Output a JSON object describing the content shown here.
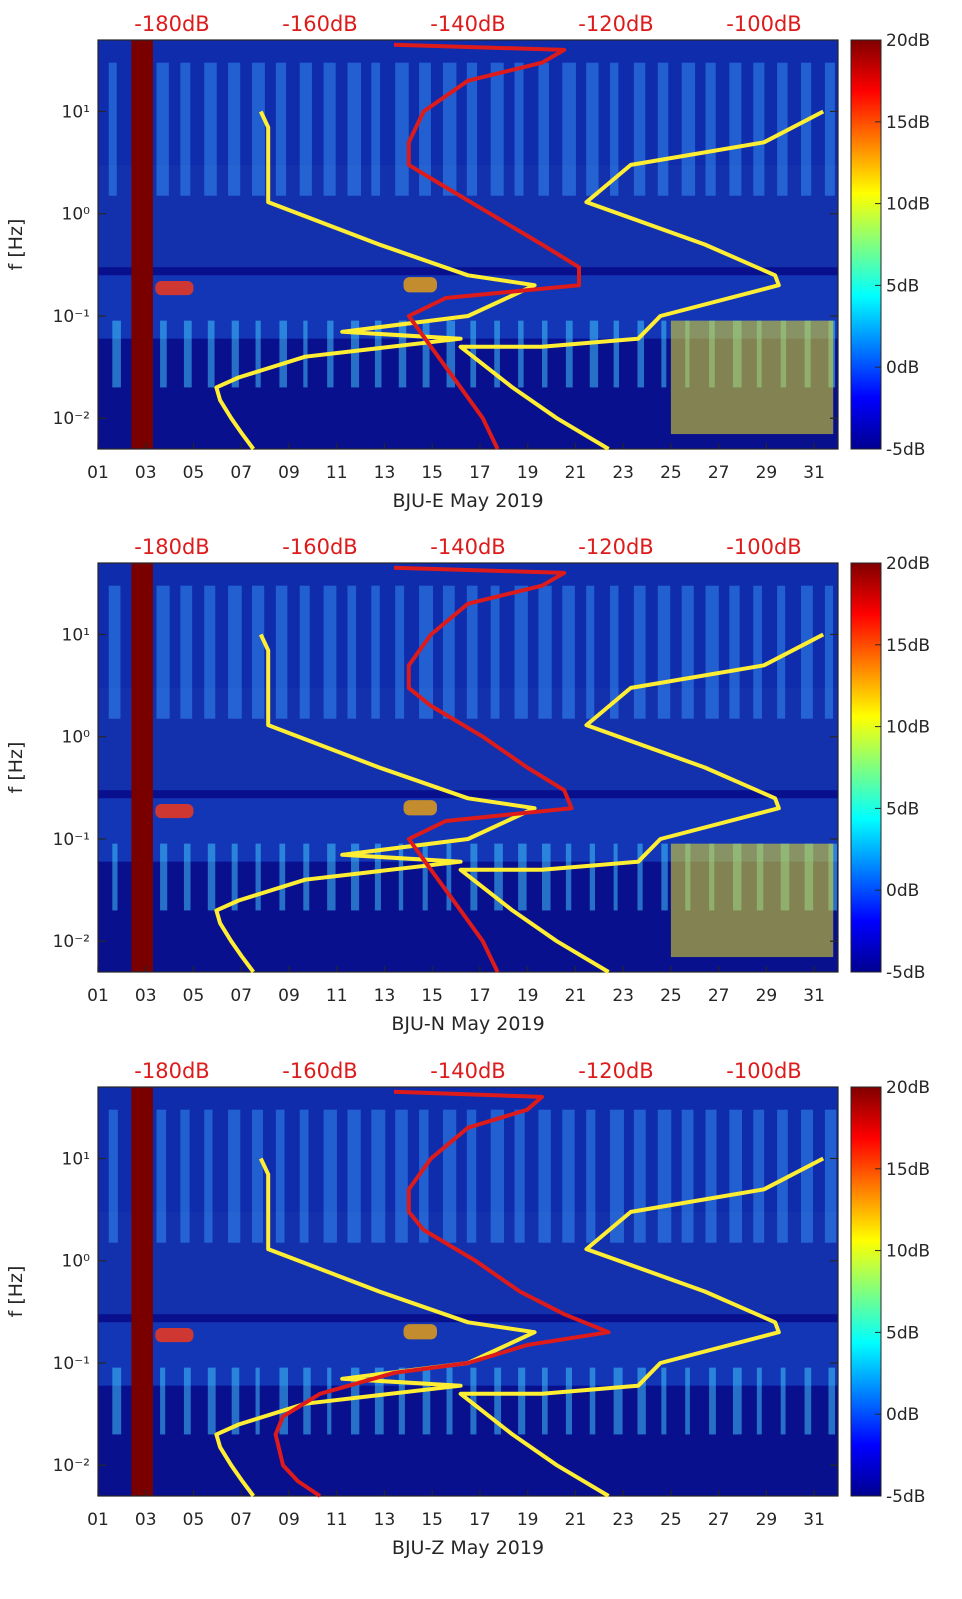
{
  "colors": {
    "noise_model_high_low": "#ffee33",
    "station_noise_median": "#dd1b1b",
    "db_scale_text": "#dd1b1b",
    "background_band": "#08108e",
    "gap_band": "#7a0000",
    "axis": "#262626"
  },
  "chart_data": [
    {
      "type": "heatmap",
      "id": "E",
      "xlabel": "BJU-E May 2019",
      "ylabel": "f [Hz]",
      "x_axis": {
        "unit": "day of May 2019",
        "range": [
          1,
          32
        ],
        "tick_values": [
          1,
          3,
          5,
          7,
          9,
          11,
          13,
          15,
          17,
          19,
          21,
          23,
          25,
          27,
          29,
          31
        ],
        "tick_labels": [
          "01",
          "03",
          "05",
          "07",
          "09",
          "11",
          "13",
          "15",
          "17",
          "19",
          "21",
          "23",
          "25",
          "27",
          "29",
          "31"
        ]
      },
      "y_axis": {
        "scale": "log",
        "unit": "Hz",
        "range": [
          0.005,
          50
        ],
        "tick_values": [
          0.01,
          0.1,
          1,
          10
        ],
        "tick_labels": [
          "10⁻²",
          "10⁻¹",
          "10⁰",
          "10¹"
        ]
      },
      "top_axis": {
        "unit": "dB",
        "range": [
          -190,
          -90
        ],
        "tick_values": [
          -180,
          -160,
          -140,
          -120,
          -100
        ],
        "tick_labels": [
          "-180dB",
          "-160dB",
          "-140dB",
          "-120dB",
          "-100dB"
        ]
      },
      "colorbar": {
        "colormap": "jet",
        "range": [
          -5,
          20
        ],
        "tick_values": [
          -5,
          0,
          5,
          10,
          15,
          20
        ],
        "tick_labels": [
          "-5dB",
          "0dB",
          "5dB",
          "10dB",
          "15dB",
          "20dB"
        ]
      },
      "data_gap": {
        "day_start": 2.4,
        "day_end": 3.3
      },
      "nlnm_nhnm": [
        {
          "name": "low noise model",
          "points": [
            [
              0.005,
              -169
            ],
            [
              0.007,
              -170.5
            ],
            [
              0.01,
              -172
            ],
            [
              0.015,
              -173.5
            ],
            [
              0.02,
              -174
            ],
            [
              0.025,
              -171
            ],
            [
              0.04,
              -162
            ],
            [
              0.06,
              -141
            ],
            [
              0.07,
              -157
            ],
            [
              0.1,
              -140
            ],
            [
              0.2,
              -131
            ],
            [
              0.25,
              -140
            ],
            [
              0.5,
              -152
            ],
            [
              1.3,
              -167
            ],
            [
              4,
              -167
            ],
            [
              7,
              -167
            ],
            [
              10,
              -168
            ]
          ]
        },
        {
          "name": "high noise model",
          "points": [
            [
              0.005,
              -121
            ],
            [
              0.01,
              -128
            ],
            [
              0.02,
              -134
            ],
            [
              0.05,
              -141
            ],
            [
              0.05,
              -130
            ],
            [
              0.06,
              -117
            ],
            [
              0.1,
              -114
            ],
            [
              0.2,
              -98
            ],
            [
              0.25,
              -98.5
            ],
            [
              0.5,
              -108
            ],
            [
              1.3,
              -124
            ],
            [
              3,
              -118
            ],
            [
              5,
              -100
            ],
            [
              10,
              -92
            ]
          ]
        }
      ],
      "median_psd": {
        "name": "station median PSD",
        "points": [
          [
            0.005,
            -136
          ],
          [
            0.01,
            -138
          ],
          [
            0.02,
            -141
          ],
          [
            0.05,
            -145
          ],
          [
            0.1,
            -148
          ],
          [
            0.15,
            -143
          ],
          [
            0.2,
            -125
          ],
          [
            0.3,
            -125
          ],
          [
            0.5,
            -130
          ],
          [
            1,
            -137
          ],
          [
            2,
            -144
          ],
          [
            3,
            -148
          ],
          [
            5,
            -148
          ],
          [
            10,
            -146
          ],
          [
            20,
            -140
          ],
          [
            30,
            -130
          ],
          [
            40,
            -127
          ],
          [
            45,
            -150
          ]
        ]
      }
    },
    {
      "type": "heatmap",
      "id": "N",
      "xlabel": "BJU-N May 2019",
      "ylabel": "f [Hz]",
      "x_axis": {
        "unit": "day of May 2019",
        "range": [
          1,
          32
        ],
        "tick_values": [
          1,
          3,
          5,
          7,
          9,
          11,
          13,
          15,
          17,
          19,
          21,
          23,
          25,
          27,
          29,
          31
        ],
        "tick_labels": [
          "01",
          "03",
          "05",
          "07",
          "09",
          "11",
          "13",
          "15",
          "17",
          "19",
          "21",
          "23",
          "25",
          "27",
          "29",
          "31"
        ]
      },
      "y_axis": {
        "scale": "log",
        "unit": "Hz",
        "range": [
          0.005,
          50
        ],
        "tick_values": [
          0.01,
          0.1,
          1,
          10
        ],
        "tick_labels": [
          "10⁻²",
          "10⁻¹",
          "10⁰",
          "10¹"
        ]
      },
      "top_axis": {
        "unit": "dB",
        "range": [
          -190,
          -90
        ],
        "tick_values": [
          -180,
          -160,
          -140,
          -120,
          -100
        ],
        "tick_labels": [
          "-180dB",
          "-160dB",
          "-140dB",
          "-120dB",
          "-100dB"
        ]
      },
      "colorbar": {
        "colormap": "jet",
        "range": [
          -5,
          20
        ],
        "tick_values": [
          -5,
          0,
          5,
          10,
          15,
          20
        ],
        "tick_labels": [
          "-5dB",
          "0dB",
          "5dB",
          "10dB",
          "15dB",
          "20dB"
        ]
      },
      "data_gap": {
        "day_start": 2.4,
        "day_end": 3.3
      },
      "nlnm_nhnm": [
        {
          "name": "low noise model",
          "points": [
            [
              0.005,
              -169
            ],
            [
              0.007,
              -170.5
            ],
            [
              0.01,
              -172
            ],
            [
              0.015,
              -173.5
            ],
            [
              0.02,
              -174
            ],
            [
              0.025,
              -171
            ],
            [
              0.04,
              -162
            ],
            [
              0.06,
              -141
            ],
            [
              0.07,
              -157
            ],
            [
              0.1,
              -140
            ],
            [
              0.2,
              -131
            ],
            [
              0.25,
              -140
            ],
            [
              0.5,
              -152
            ],
            [
              1.3,
              -167
            ],
            [
              4,
              -167
            ],
            [
              7,
              -167
            ],
            [
              10,
              -168
            ]
          ]
        },
        {
          "name": "high noise model",
          "points": [
            [
              0.005,
              -121
            ],
            [
              0.01,
              -128
            ],
            [
              0.02,
              -134
            ],
            [
              0.05,
              -141
            ],
            [
              0.05,
              -130
            ],
            [
              0.06,
              -117
            ],
            [
              0.1,
              -114
            ],
            [
              0.2,
              -98
            ],
            [
              0.25,
              -98.5
            ],
            [
              0.5,
              -108
            ],
            [
              1.3,
              -124
            ],
            [
              3,
              -118
            ],
            [
              5,
              -100
            ],
            [
              10,
              -92
            ]
          ]
        }
      ],
      "median_psd": {
        "name": "station median PSD",
        "points": [
          [
            0.005,
            -136
          ],
          [
            0.01,
            -138
          ],
          [
            0.02,
            -141
          ],
          [
            0.05,
            -145
          ],
          [
            0.1,
            -148
          ],
          [
            0.15,
            -143
          ],
          [
            0.2,
            -126
          ],
          [
            0.3,
            -127
          ],
          [
            0.5,
            -132
          ],
          [
            1,
            -138
          ],
          [
            2,
            -145
          ],
          [
            3,
            -148
          ],
          [
            5,
            -148
          ],
          [
            10,
            -145
          ],
          [
            20,
            -140
          ],
          [
            30,
            -130
          ],
          [
            40,
            -127
          ],
          [
            45,
            -150
          ]
        ]
      }
    },
    {
      "type": "heatmap",
      "id": "Z",
      "xlabel": "BJU-Z May 2019",
      "ylabel": "f [Hz]",
      "x_axis": {
        "unit": "day of May 2019",
        "range": [
          1,
          32
        ],
        "tick_values": [
          1,
          3,
          5,
          7,
          9,
          11,
          13,
          15,
          17,
          19,
          21,
          23,
          25,
          27,
          29,
          31
        ],
        "tick_labels": [
          "01",
          "03",
          "05",
          "07",
          "09",
          "11",
          "13",
          "15",
          "17",
          "19",
          "21",
          "23",
          "25",
          "27",
          "29",
          "31"
        ]
      },
      "y_axis": {
        "scale": "log",
        "unit": "Hz",
        "range": [
          0.005,
          50
        ],
        "tick_values": [
          0.01,
          0.1,
          1,
          10
        ],
        "tick_labels": [
          "10⁻²",
          "10⁻¹",
          "10⁰",
          "10¹"
        ]
      },
      "top_axis": {
        "unit": "dB",
        "range": [
          -190,
          -90
        ],
        "tick_values": [
          -180,
          -160,
          -140,
          -120,
          -100
        ],
        "tick_labels": [
          "-180dB",
          "-160dB",
          "-140dB",
          "-120dB",
          "-100dB"
        ]
      },
      "colorbar": {
        "colormap": "jet",
        "range": [
          -5,
          20
        ],
        "tick_values": [
          -5,
          0,
          5,
          10,
          15,
          20
        ],
        "tick_labels": [
          "-5dB",
          "0dB",
          "5dB",
          "10dB",
          "15dB",
          "20dB"
        ]
      },
      "data_gap": {
        "day_start": 2.4,
        "day_end": 3.3
      },
      "nlnm_nhnm": [
        {
          "name": "low noise model",
          "points": [
            [
              0.005,
              -169
            ],
            [
              0.007,
              -170.5
            ],
            [
              0.01,
              -172
            ],
            [
              0.015,
              -173.5
            ],
            [
              0.02,
              -174
            ],
            [
              0.025,
              -171
            ],
            [
              0.04,
              -162
            ],
            [
              0.06,
              -141
            ],
            [
              0.07,
              -157
            ],
            [
              0.1,
              -140
            ],
            [
              0.2,
              -131
            ],
            [
              0.25,
              -140
            ],
            [
              0.5,
              -152
            ],
            [
              1.3,
              -167
            ],
            [
              4,
              -167
            ],
            [
              7,
              -167
            ],
            [
              10,
              -168
            ]
          ]
        },
        {
          "name": "high noise model",
          "points": [
            [
              0.005,
              -121
            ],
            [
              0.01,
              -128
            ],
            [
              0.02,
              -134
            ],
            [
              0.05,
              -141
            ],
            [
              0.05,
              -130
            ],
            [
              0.06,
              -117
            ],
            [
              0.1,
              -114
            ],
            [
              0.2,
              -98
            ],
            [
              0.25,
              -98.5
            ],
            [
              0.5,
              -108
            ],
            [
              1.3,
              -124
            ],
            [
              3,
              -118
            ],
            [
              5,
              -100
            ],
            [
              10,
              -92
            ]
          ]
        }
      ],
      "median_psd": {
        "name": "station median PSD",
        "points": [
          [
            0.005,
            -160
          ],
          [
            0.007,
            -163
          ],
          [
            0.01,
            -165
          ],
          [
            0.02,
            -166
          ],
          [
            0.03,
            -165
          ],
          [
            0.05,
            -160
          ],
          [
            0.08,
            -150
          ],
          [
            0.1,
            -140
          ],
          [
            0.15,
            -132
          ],
          [
            0.2,
            -121
          ],
          [
            0.3,
            -127
          ],
          [
            0.5,
            -133
          ],
          [
            1,
            -139
          ],
          [
            2,
            -146
          ],
          [
            3,
            -148
          ],
          [
            5,
            -148
          ],
          [
            10,
            -145
          ],
          [
            20,
            -140
          ],
          [
            30,
            -132
          ],
          [
            40,
            -130
          ],
          [
            45,
            -150
          ]
        ]
      }
    }
  ]
}
